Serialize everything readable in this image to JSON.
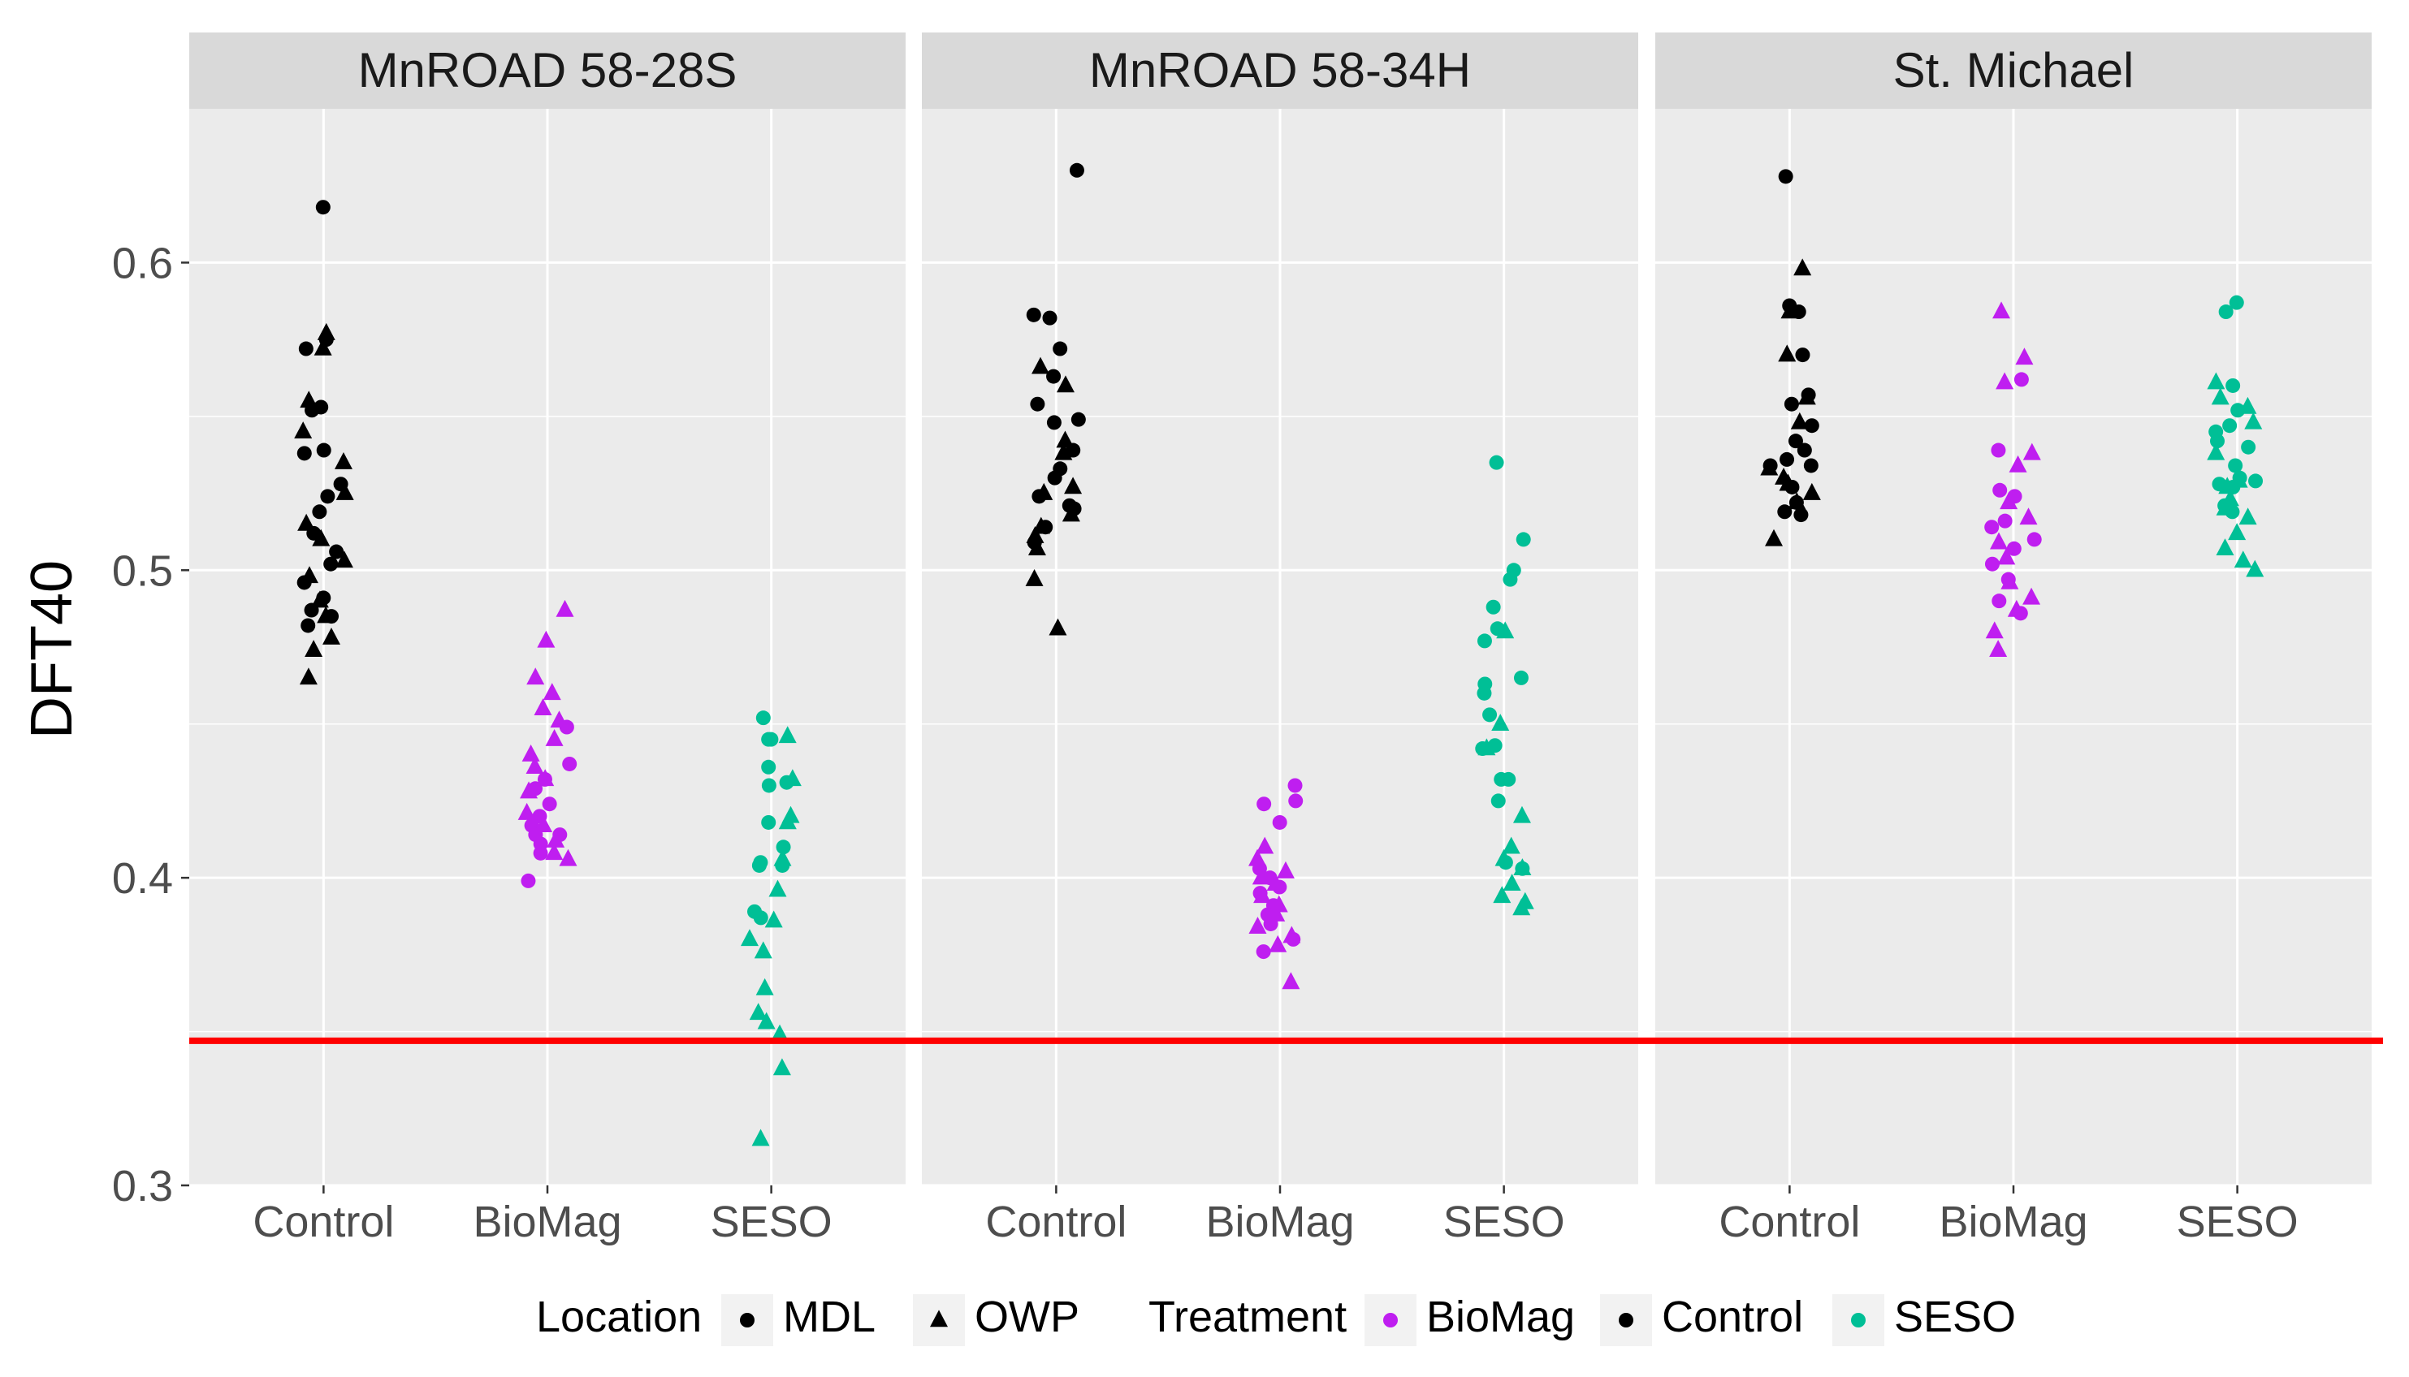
{
  "chart_data": {
    "type": "scatter",
    "ylabel": "DFT40",
    "xlabel": "",
    "ylim": [
      0.3,
      0.65
    ],
    "yticks": [
      0.3,
      0.4,
      0.5,
      0.6
    ],
    "ytick_labels": [
      "0.3",
      "0.4",
      "0.5",
      "0.6"
    ],
    "categories": [
      "Control",
      "BioMag",
      "SESO"
    ],
    "reference_line": {
      "y": 0.347,
      "color": "#ff0000"
    },
    "colors": {
      "Control": "#000000",
      "BioMag": "#bf1ef0",
      "SESO": "#00bf96"
    },
    "legend": {
      "location_title": "Location",
      "location_items": [
        {
          "label": "MDL",
          "shape": "circle"
        },
        {
          "label": "OWP",
          "shape": "triangle"
        }
      ],
      "treatment_title": "Treatment",
      "treatment_items": [
        {
          "label": "BioMag",
          "color": "#bf1ef0"
        },
        {
          "label": "Control",
          "color": "#000000"
        },
        {
          "label": "SESO",
          "color": "#00bf96"
        }
      ],
      "position": "bottom"
    },
    "panels": [
      {
        "title": "MnROAD 58-28S",
        "groups": {
          "Control": {
            "MDL": [
              0.618,
              0.575,
              0.572,
              0.552,
              0.553,
              0.539,
              0.538,
              0.528,
              0.524,
              0.519,
              0.512,
              0.506,
              0.502,
              0.496,
              0.491,
              0.487,
              0.485,
              0.482
            ],
            "OWP": [
              0.577,
              0.572,
              0.555,
              0.545,
              0.535,
              0.525,
              0.515,
              0.51,
              0.503,
              0.498,
              0.49,
              0.485,
              0.478,
              0.474,
              0.465
            ]
          },
          "BioMag": {
            "MDL": [
              0.437,
              0.432,
              0.429,
              0.424,
              0.42,
              0.417,
              0.414,
              0.411,
              0.408,
              0.399,
              0.449,
              0.414
            ],
            "OWP": [
              0.487,
              0.477,
              0.465,
              0.46,
              0.455,
              0.451,
              0.445,
              0.44,
              0.436,
              0.432,
              0.428,
              0.421,
              0.417,
              0.412,
              0.408,
              0.406
            ]
          },
          "SESO": {
            "MDL": [
              0.452,
              0.445,
              0.445,
              0.436,
              0.431,
              0.43,
              0.418,
              0.405,
              0.404,
              0.404,
              0.389,
              0.387,
              0.41
            ],
            "OWP": [
              0.446,
              0.432,
              0.42,
              0.418,
              0.406,
              0.396,
              0.386,
              0.38,
              0.376,
              0.364,
              0.356,
              0.353,
              0.349,
              0.338,
              0.315
            ]
          }
        }
      },
      {
        "title": "MnROAD 58-34H",
        "groups": {
          "Control": {
            "MDL": [
              0.63,
              0.583,
              0.582,
              0.572,
              0.563,
              0.554,
              0.549,
              0.548,
              0.539,
              0.533,
              0.53,
              0.524,
              0.521,
              0.52,
              0.514,
              0.509
            ],
            "OWP": [
              0.566,
              0.56,
              0.542,
              0.538,
              0.527,
              0.525,
              0.518,
              0.514,
              0.511,
              0.507,
              0.497,
              0.481
            ]
          },
          "BioMag": {
            "MDL": [
              0.43,
              0.425,
              0.424,
              0.418,
              0.403,
              0.4,
              0.397,
              0.395,
              0.391,
              0.388,
              0.385,
              0.38,
              0.376
            ],
            "OWP": [
              0.41,
              0.406,
              0.402,
              0.4,
              0.398,
              0.394,
              0.391,
              0.388,
              0.384,
              0.381,
              0.378,
              0.366
            ]
          },
          "SESO": {
            "MDL": [
              0.535,
              0.51,
              0.5,
              0.497,
              0.488,
              0.481,
              0.477,
              0.465,
              0.463,
              0.46,
              0.453,
              0.443,
              0.442,
              0.432,
              0.432,
              0.425,
              0.405,
              0.403
            ],
            "OWP": [
              0.48,
              0.45,
              0.442,
              0.42,
              0.41,
              0.406,
              0.403,
              0.398,
              0.394,
              0.392,
              0.39
            ]
          }
        }
      },
      {
        "title": "St. Michael",
        "groups": {
          "Control": {
            "MDL": [
              0.628,
              0.586,
              0.584,
              0.57,
              0.557,
              0.554,
              0.547,
              0.542,
              0.539,
              0.536,
              0.534,
              0.534,
              0.527,
              0.522,
              0.519,
              0.518
            ],
            "OWP": [
              0.598,
              0.584,
              0.57,
              0.556,
              0.548,
              0.533,
              0.53,
              0.528,
              0.525,
              0.522,
              0.51
            ]
          },
          "BioMag": {
            "MDL": [
              0.562,
              0.539,
              0.526,
              0.524,
              0.516,
              0.514,
              0.51,
              0.507,
              0.502,
              0.497,
              0.49,
              0.486
            ],
            "OWP": [
              0.584,
              0.569,
              0.561,
              0.538,
              0.534,
              0.522,
              0.517,
              0.509,
              0.504,
              0.496,
              0.491,
              0.487,
              0.48,
              0.474
            ]
          },
          "SESO": {
            "MDL": [
              0.587,
              0.584,
              0.56,
              0.552,
              0.547,
              0.545,
              0.542,
              0.54,
              0.534,
              0.53,
              0.529,
              0.528,
              0.527,
              0.521,
              0.519
            ],
            "OWP": [
              0.561,
              0.556,
              0.553,
              0.548,
              0.538,
              0.529,
              0.527,
              0.523,
              0.52,
              0.517,
              0.512,
              0.507,
              0.503,
              0.5
            ]
          }
        }
      }
    ]
  }
}
